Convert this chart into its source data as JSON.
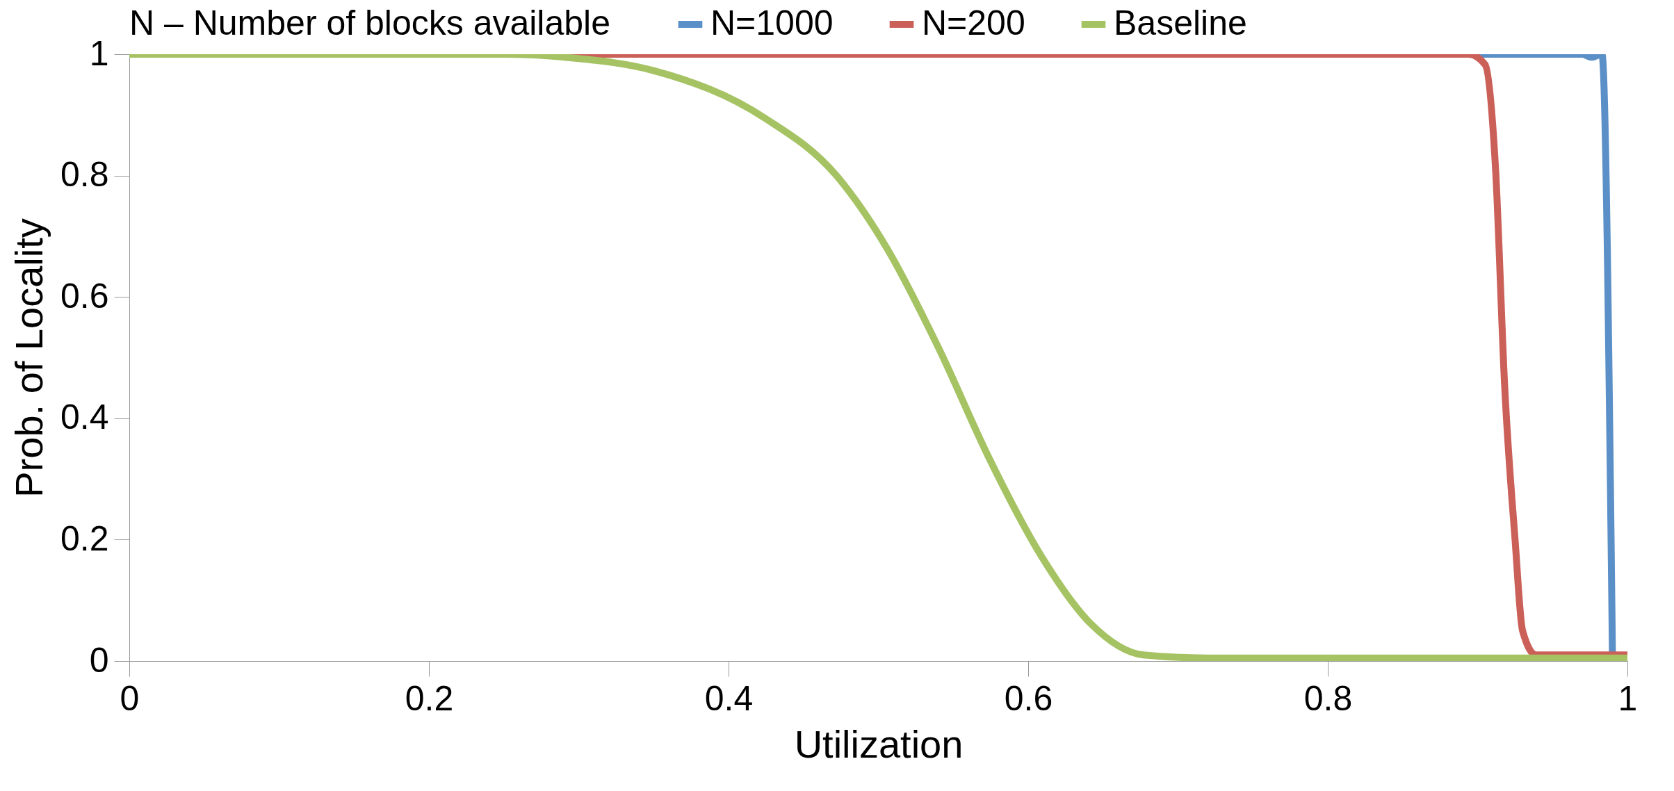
{
  "chart_data": {
    "type": "line",
    "xlabel": "Utilization",
    "ylabel": "Prob. of Locality",
    "legend_title": "N – Number of blocks available",
    "legend": "top",
    "xlim": [
      0,
      1
    ],
    "xticks": [
      0,
      0.2,
      0.4,
      0.6,
      0.8,
      1
    ],
    "ylim": [
      0,
      1
    ],
    "yticks": [
      0,
      0.2,
      0.4,
      0.6,
      0.8,
      1
    ],
    "series": [
      {
        "name": "N=1000",
        "color": "#5b8fc7",
        "x": [
          0.9,
          0.97,
          0.976,
          0.983,
          0.99
        ],
        "values": [
          1,
          1,
          0.995,
          1,
          0.01
        ]
      },
      {
        "name": "N=200",
        "color": "#cb6059",
        "x": [
          0,
          0.5,
          0.894,
          0.905,
          0.912,
          0.918,
          0.925,
          0.93,
          0.939,
          1
        ],
        "values": [
          1,
          1,
          1,
          0.983,
          0.81,
          0.456,
          0.2,
          0.05,
          0.01,
          0.01
        ]
      },
      {
        "name": "Baseline",
        "color": "#a6c364",
        "x": [
          0,
          0.25,
          0.295,
          0.35,
          0.424,
          0.472,
          0.506,
          0.54,
          0.574,
          0.609,
          0.642,
          0.677,
          0.72,
          1
        ],
        "values": [
          1,
          1,
          0.994,
          0.973,
          0.895,
          0.8,
          0.679,
          0.517,
          0.334,
          0.172,
          0.061,
          0.01,
          0.005,
          0.005
        ]
      }
    ]
  }
}
